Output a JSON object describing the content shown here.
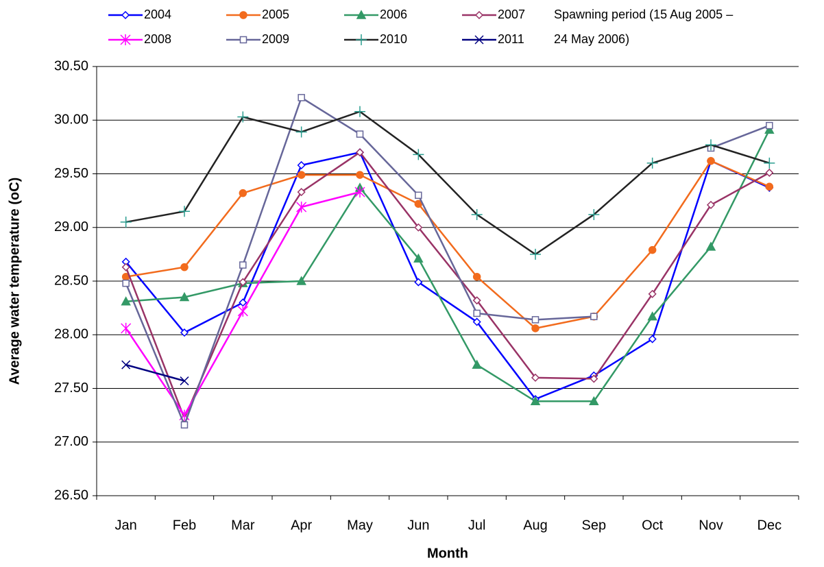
{
  "chart_data": {
    "type": "line",
    "annotation": [
      "Spawning period (15 Aug 2005 –",
      "24 May 2006)"
    ],
    "x_label": "Month",
    "y_label": "Average water temperature (oC)",
    "categories": [
      "Jan",
      "Feb",
      "Mar",
      "Apr",
      "May",
      "Jun",
      "Jul",
      "Aug",
      "Sep",
      "Oct",
      "Nov",
      "Dec"
    ],
    "ylim": [
      26.5,
      30.5
    ],
    "yticks": [
      {
        "value": 26.5,
        "label": "26.50"
      },
      {
        "value": 27,
        "label": "27.00"
      },
      {
        "value": 27.5,
        "label": "27.50"
      },
      {
        "value": 28,
        "label": "28.00"
      },
      {
        "value": 28.5,
        "label": "28.50"
      },
      {
        "value": 29,
        "label": "29.00"
      },
      {
        "value": 29.5,
        "label": "29.50"
      },
      {
        "value": 30,
        "label": "30.00"
      },
      {
        "value": 30.5,
        "label": "30.50"
      }
    ],
    "grid": true,
    "series": [
      {
        "name": "2004",
        "color": "#0000ff",
        "marker": "diamond-open",
        "values": [
          28.68,
          28.02,
          28.3,
          29.58,
          29.7,
          28.49,
          28.12,
          27.4,
          27.62,
          27.96,
          29.62,
          29.37
        ]
      },
      {
        "name": "2005",
        "color": "#f26b1d",
        "marker": "circle",
        "values": [
          28.54,
          28.63,
          29.32,
          29.49,
          29.49,
          29.22,
          28.54,
          28.06,
          28.17,
          28.79,
          29.62,
          29.38
        ]
      },
      {
        "name": "2006",
        "color": "#339966",
        "marker": "triangle",
        "values": [
          28.31,
          28.35,
          28.48,
          28.5,
          29.37,
          28.71,
          27.72,
          27.38,
          27.38,
          28.17,
          28.82,
          29.91
        ]
      },
      {
        "name": "2007",
        "color": "#993366",
        "marker": "diamond-open",
        "values": [
          28.63,
          27.22,
          28.49,
          29.33,
          29.7,
          29.0,
          28.32,
          27.6,
          27.59,
          28.38,
          29.21,
          29.51
        ]
      },
      {
        "name": "2008",
        "color": "#ff00ff",
        "marker": "asterisk",
        "values": [
          28.06,
          27.25,
          28.22,
          29.19,
          29.33,
          null,
          null,
          null,
          null,
          null,
          null,
          null
        ]
      },
      {
        "name": "2009",
        "color": "#666699",
        "marker": "square-open",
        "values": [
          28.48,
          27.16,
          28.65,
          30.21,
          29.87,
          29.3,
          28.2,
          28.14,
          28.17,
          null,
          29.74,
          29.95
        ]
      },
      {
        "name": "2010",
        "color": "#222222",
        "marker": "plus",
        "values": [
          29.05,
          29.15,
          30.03,
          29.89,
          30.08,
          29.68,
          29.12,
          28.75,
          29.12,
          29.6,
          29.77,
          29.6
        ]
      },
      {
        "name": "2011",
        "color": "#000080",
        "marker": "x",
        "values": [
          27.72,
          27.57,
          null,
          null,
          null,
          null,
          null,
          null,
          null,
          null,
          null,
          null
        ]
      }
    ]
  }
}
